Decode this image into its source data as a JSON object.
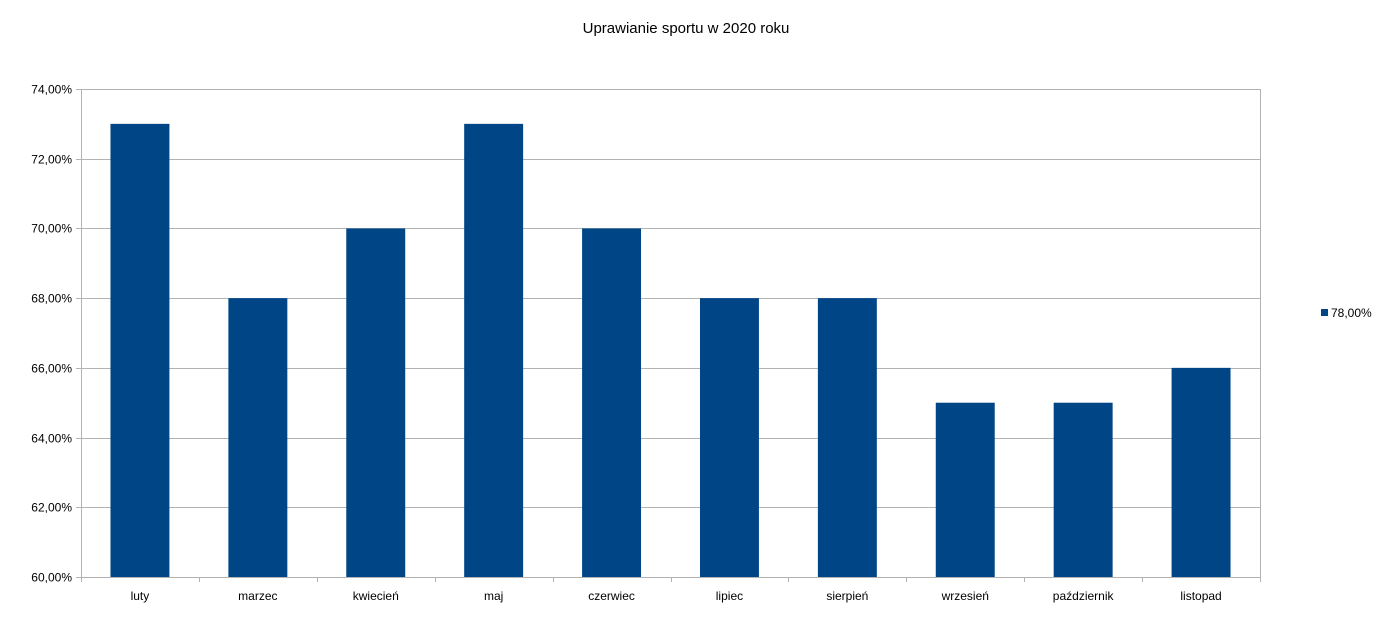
{
  "chart_data": {
    "type": "bar",
    "title": "Uprawianie sportu w 2020 roku",
    "xlabel": "",
    "ylabel": "",
    "categories": [
      "luty",
      "marzec",
      "kwiecień",
      "maj",
      "czerwiec",
      "lipiec",
      "sierpień",
      "wrzesień",
      "październik",
      "listopad"
    ],
    "series": [
      {
        "name": "78,00%",
        "values": [
          73,
          68,
          70,
          73,
          70,
          68,
          68,
          65,
          65,
          66
        ],
        "color": "#004586"
      }
    ],
    "ylim": [
      60,
      74
    ],
    "yticks": [
      60,
      62,
      64,
      66,
      68,
      70,
      72,
      74
    ],
    "ytick_labels": [
      "60,00%",
      "62,00%",
      "64,00%",
      "66,00%",
      "68,00%",
      "70,00%",
      "72,00%",
      "74,00%"
    ],
    "grid": true,
    "legend_position": "right"
  }
}
